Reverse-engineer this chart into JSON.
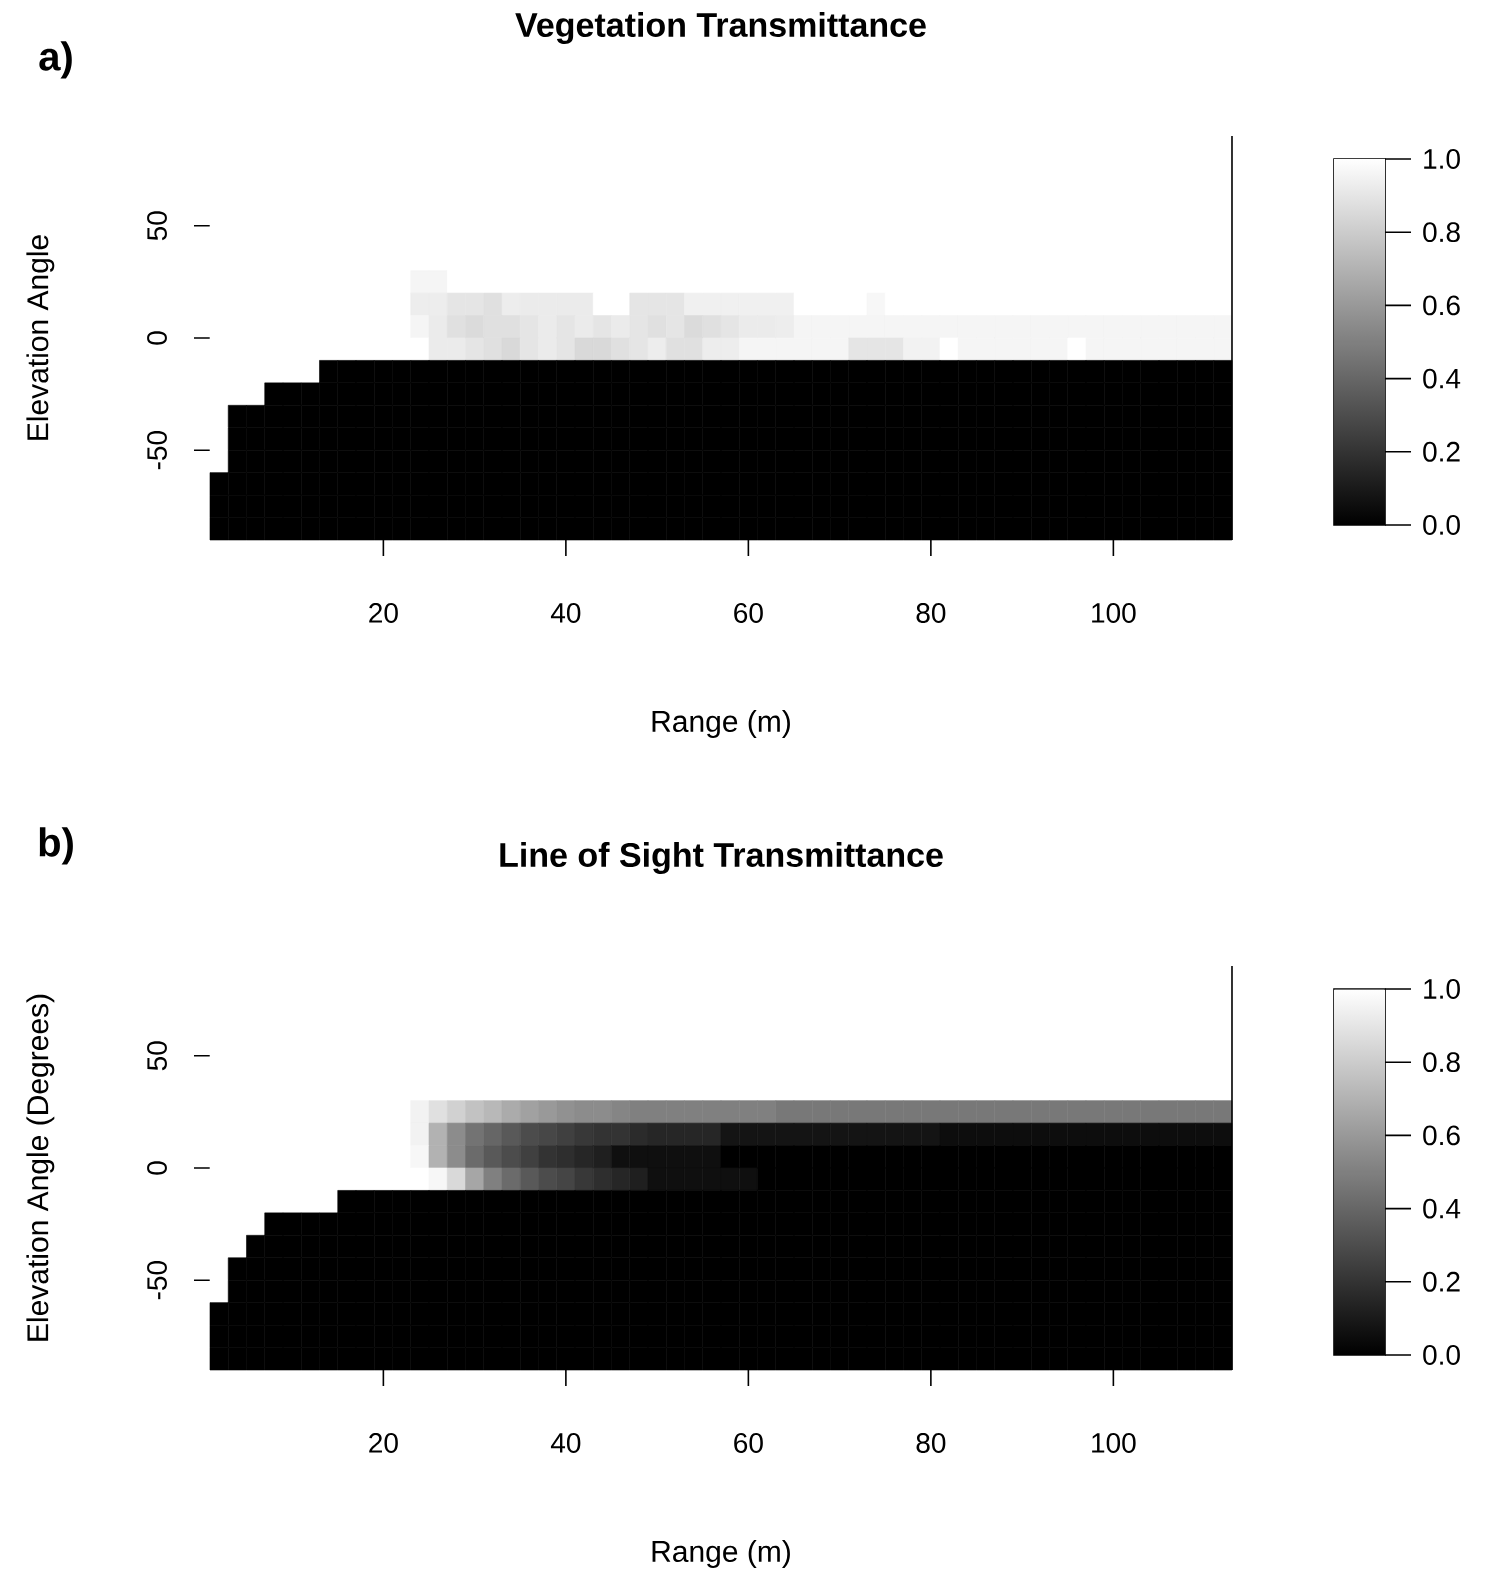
{
  "chart_data": [
    {
      "type": "heatmap",
      "title": "Vegetation Transmittance",
      "xlabel": "Range (m)",
      "ylabel": "Elevation Angle",
      "annotations": [
        "a)"
      ],
      "categories": [
        null,
        null,
        null,
        null,
        null,
        null,
        null,
        null,
        null,
        "20",
        null,
        null,
        null,
        null,
        null,
        null,
        null,
        null,
        null,
        "40",
        null,
        null,
        null,
        null,
        null,
        null,
        null,
        null,
        null,
        "60",
        null,
        null,
        null,
        null,
        null,
        null,
        null,
        null,
        null,
        "80",
        null,
        null,
        null,
        null,
        null,
        null,
        null,
        null,
        null,
        "100",
        null,
        null,
        null,
        null,
        null,
        null
      ],
      "ylim": [
        -90,
        90
      ],
      "yticks": [
        -50,
        0,
        50
      ],
      "clim": [
        0,
        1
      ],
      "cticks": [
        {
          "value": 0,
          "label": "0.0"
        },
        {
          "value": 0.2,
          "label": "0.2"
        },
        {
          "value": 0.4,
          "label": "0.4"
        },
        {
          "value": 0.6,
          "label": "0.6"
        },
        {
          "value": 0.8,
          "label": "0.8"
        },
        {
          "value": 1,
          "label": "1.0"
        }
      ],
      "cells": [
        [
          1,
          1,
          1,
          1,
          1,
          1,
          1,
          1,
          1,
          1,
          1,
          1,
          1,
          1,
          1,
          1,
          1,
          1,
          1,
          1,
          1,
          1,
          1,
          1,
          1,
          1,
          1,
          1,
          1,
          1,
          1,
          1,
          1,
          1,
          1,
          1,
          1,
          1,
          1,
          1,
          1,
          1,
          1,
          1,
          1,
          1,
          1,
          1,
          1,
          1,
          1,
          1,
          1,
          1,
          1,
          1
        ],
        [
          1,
          1,
          1,
          1,
          1,
          1,
          1,
          1,
          1,
          1,
          1,
          1,
          1,
          1,
          1,
          1,
          1,
          1,
          1,
          1,
          1,
          1,
          1,
          1,
          1,
          1,
          1,
          1,
          1,
          1,
          1,
          1,
          1,
          1,
          1,
          1,
          1,
          1,
          1,
          1,
          1,
          1,
          1,
          1,
          1,
          1,
          1,
          1,
          1,
          1,
          1,
          1,
          1,
          1,
          1,
          1
        ],
        [
          1,
          1,
          1,
          1,
          1,
          1,
          1,
          1,
          1,
          1,
          1,
          1,
          1,
          1,
          1,
          1,
          1,
          1,
          1,
          1,
          1,
          1,
          1,
          1,
          1,
          1,
          1,
          1,
          1,
          1,
          1,
          1,
          1,
          1,
          1,
          1,
          1,
          1,
          1,
          1,
          1,
          1,
          1,
          1,
          1,
          1,
          1,
          1,
          1,
          1,
          1,
          1,
          1,
          1,
          1,
          1
        ],
        [
          1,
          1,
          1,
          1,
          1,
          1,
          1,
          1,
          1,
          1,
          1,
          1,
          1,
          1,
          1,
          1,
          1,
          1,
          1,
          1,
          1,
          1,
          1,
          1,
          1,
          1,
          1,
          1,
          1,
          1,
          1,
          1,
          1,
          1,
          1,
          1,
          1,
          1,
          1,
          1,
          1,
          1,
          1,
          1,
          1,
          1,
          1,
          1,
          1,
          1,
          1,
          1,
          1,
          1,
          1,
          1
        ],
        [
          1,
          1,
          1,
          1,
          1,
          1,
          1,
          1,
          1,
          1,
          1,
          1,
          1,
          1,
          1,
          1,
          1,
          1,
          1,
          1,
          1,
          1,
          1,
          1,
          1,
          1,
          1,
          1,
          1,
          1,
          1,
          1,
          1,
          1,
          1,
          1,
          1,
          1,
          1,
          1,
          1,
          1,
          1,
          1,
          1,
          1,
          1,
          1,
          1,
          1,
          1,
          1,
          1,
          1,
          1,
          1
        ],
        [
          1,
          1,
          1,
          1,
          1,
          1,
          1,
          1,
          1,
          1,
          1,
          1,
          1,
          1,
          1,
          1,
          1,
          1,
          1,
          1,
          1,
          1,
          1,
          1,
          1,
          1,
          1,
          1,
          1,
          1,
          1,
          1,
          1,
          1,
          1,
          1,
          1,
          1,
          1,
          1,
          1,
          1,
          1,
          1,
          1,
          1,
          1,
          1,
          1,
          1,
          1,
          1,
          1,
          1,
          1,
          1
        ],
        [
          1,
          1,
          1,
          1,
          1,
          1,
          1,
          1,
          1,
          1,
          1,
          0.96,
          0.96,
          1,
          1,
          1,
          1,
          1,
          1,
          1,
          1,
          1,
          1,
          1,
          1,
          1,
          1,
          1,
          1,
          1,
          1,
          1,
          1,
          1,
          1,
          1,
          1,
          1,
          1,
          1,
          1,
          1,
          1,
          1,
          1,
          1,
          1,
          1,
          1,
          1,
          1,
          1,
          1,
          1,
          1,
          1
        ],
        [
          1,
          1,
          1,
          1,
          1,
          1,
          1,
          1,
          1,
          1,
          1,
          0.93,
          0.93,
          0.9,
          0.9,
          0.88,
          0.93,
          0.92,
          0.92,
          0.92,
          0.92,
          1,
          1,
          0.9,
          0.9,
          0.9,
          0.94,
          0.94,
          0.94,
          0.94,
          0.94,
          0.94,
          1,
          1,
          1,
          1,
          0.97,
          1,
          1,
          1,
          1,
          1,
          1,
          1,
          1,
          1,
          1,
          1,
          1,
          1,
          1,
          1,
          1,
          1,
          1,
          1
        ],
        [
          1,
          1,
          1,
          1,
          1,
          1,
          1,
          1,
          1,
          1,
          1,
          0.96,
          0.92,
          0.88,
          0.86,
          0.88,
          0.88,
          0.9,
          0.92,
          0.9,
          0.92,
          0.9,
          0.92,
          0.9,
          0.88,
          0.9,
          0.86,
          0.88,
          0.9,
          0.92,
          0.92,
          0.93,
          0.96,
          0.96,
          0.96,
          0.96,
          0.96,
          0.96,
          0.96,
          0.96,
          0.96,
          0.96,
          0.96,
          0.96,
          0.96,
          0.96,
          0.96,
          0.96,
          0.96,
          0.96,
          0.96,
          0.96,
          0.96,
          0.96,
          0.96,
          0.96
        ],
        [
          1,
          1,
          1,
          1,
          1,
          1,
          1,
          1,
          1,
          1,
          1,
          1,
          0.92,
          0.92,
          0.9,
          0.88,
          0.85,
          0.9,
          0.92,
          0.9,
          0.85,
          0.85,
          0.88,
          0.9,
          0.93,
          0.88,
          0.88,
          0.93,
          0.93,
          0.96,
          0.96,
          0.96,
          0.96,
          0.96,
          0.96,
          0.9,
          0.9,
          0.9,
          0.95,
          0.95,
          1,
          0.96,
          0.96,
          0.96,
          0.96,
          0.96,
          0.96,
          1,
          0.96,
          0.96,
          0.96,
          0.96,
          0.96,
          0.96,
          0.96,
          0.96
        ],
        [
          1,
          1,
          1,
          1,
          1,
          1,
          0,
          0,
          0,
          0,
          0,
          0,
          0,
          0,
          0,
          0,
          0,
          0,
          0,
          0,
          0,
          0,
          0,
          0,
          0,
          0,
          0,
          0,
          0,
          0,
          0,
          0,
          0,
          0,
          0,
          0,
          0,
          0,
          0,
          0,
          0,
          0,
          0,
          0,
          0,
          0,
          0,
          0,
          0,
          0,
          0,
          0,
          0,
          0,
          0,
          0
        ],
        [
          1,
          1,
          1,
          0,
          0,
          0,
          0,
          0,
          0,
          0,
          0,
          0,
          0,
          0,
          0,
          0,
          0,
          0,
          0,
          0,
          0,
          0,
          0,
          0,
          0,
          0,
          0,
          0,
          0,
          0,
          0,
          0,
          0,
          0,
          0,
          0,
          0,
          0,
          0,
          0,
          0,
          0,
          0,
          0,
          0,
          0,
          0,
          0,
          0,
          0,
          0,
          0,
          0,
          0,
          0,
          0
        ],
        [
          1,
          0,
          0,
          0,
          0,
          0,
          0,
          0,
          0,
          0,
          0,
          0,
          0,
          0,
          0,
          0,
          0,
          0,
          0,
          0,
          0,
          0,
          0,
          0,
          0,
          0,
          0,
          0,
          0,
          0,
          0,
          0,
          0,
          0,
          0,
          0,
          0,
          0,
          0,
          0,
          0,
          0,
          0,
          0,
          0,
          0,
          0,
          0,
          0,
          0,
          0,
          0,
          0,
          0,
          0,
          0
        ],
        [
          1,
          0,
          0,
          0,
          0,
          0,
          0,
          0,
          0,
          0,
          0,
          0,
          0,
          0,
          0,
          0,
          0,
          0,
          0,
          0,
          0,
          0,
          0,
          0,
          0,
          0,
          0,
          0,
          0,
          0,
          0,
          0,
          0,
          0,
          0,
          0,
          0,
          0,
          0,
          0,
          0,
          0,
          0,
          0,
          0,
          0,
          0,
          0,
          0,
          0,
          0,
          0,
          0,
          0,
          0,
          0
        ],
        [
          1,
          0,
          0,
          0,
          0,
          0,
          0,
          0,
          0,
          0,
          0,
          0,
          0,
          0,
          0,
          0,
          0,
          0,
          0,
          0,
          0,
          0,
          0,
          0,
          0,
          0,
          0,
          0,
          0,
          0,
          0,
          0,
          0,
          0,
          0,
          0,
          0,
          0,
          0,
          0,
          0,
          0,
          0,
          0,
          0,
          0,
          0,
          0,
          0,
          0,
          0,
          0,
          0,
          0,
          0,
          0
        ],
        [
          0,
          0,
          0,
          0,
          0,
          0,
          0,
          0,
          0,
          0,
          0,
          0,
          0,
          0,
          0,
          0,
          0,
          0,
          0,
          0,
          0,
          0,
          0,
          0,
          0,
          0,
          0,
          0,
          0,
          0,
          0,
          0,
          0,
          0,
          0,
          0,
          0,
          0,
          0,
          0,
          0,
          0,
          0,
          0,
          0,
          0,
          0,
          0,
          0,
          0,
          0,
          0,
          0,
          0,
          0,
          0
        ],
        [
          0,
          0,
          0,
          0,
          0,
          0,
          0,
          0,
          0,
          0,
          0,
          0,
          0,
          0,
          0,
          0,
          0,
          0,
          0,
          0,
          0,
          0,
          0,
          0,
          0,
          0,
          0,
          0,
          0,
          0,
          0,
          0,
          0,
          0,
          0,
          0,
          0,
          0,
          0,
          0,
          0,
          0,
          0,
          0,
          0,
          0,
          0,
          0,
          0,
          0,
          0,
          0,
          0,
          0,
          0,
          0
        ],
        [
          0,
          0,
          0,
          0,
          0,
          0,
          0,
          0,
          0,
          0,
          0,
          0,
          0,
          0,
          0,
          0,
          0,
          0,
          0,
          0,
          0,
          0,
          0,
          0,
          0,
          0,
          0,
          0,
          0,
          0,
          0,
          0,
          0,
          0,
          0,
          0,
          0,
          0,
          0,
          0,
          0,
          0,
          0,
          0,
          0,
          0,
          0,
          0,
          0,
          0,
          0,
          0,
          0,
          0,
          0,
          0
        ]
      ]
    },
    {
      "type": "heatmap",
      "title": "Line of Sight Transmittance",
      "xlabel": "Range (m)",
      "ylabel": "Elevation Angle (Degrees)",
      "annotations": [
        "b)"
      ],
      "categories": [
        null,
        null,
        null,
        null,
        null,
        null,
        null,
        null,
        null,
        "20",
        null,
        null,
        null,
        null,
        null,
        null,
        null,
        null,
        null,
        "40",
        null,
        null,
        null,
        null,
        null,
        null,
        null,
        null,
        null,
        "60",
        null,
        null,
        null,
        null,
        null,
        null,
        null,
        null,
        null,
        "80",
        null,
        null,
        null,
        null,
        null,
        null,
        null,
        null,
        null,
        "100",
        null,
        null,
        null,
        null,
        null,
        null
      ],
      "ylim": [
        -90,
        90
      ],
      "yticks": [
        -50,
        0,
        50
      ],
      "clim": [
        0,
        1
      ],
      "cticks": [
        {
          "value": 0,
          "label": "0.0"
        },
        {
          "value": 0.2,
          "label": "0.2"
        },
        {
          "value": 0.4,
          "label": "0.4"
        },
        {
          "value": 0.6,
          "label": "0.6"
        },
        {
          "value": 0.8,
          "label": "0.8"
        },
        {
          "value": 1,
          "label": "1.0"
        }
      ],
      "cells": [
        [
          1,
          1,
          1,
          1,
          1,
          1,
          1,
          1,
          1,
          1,
          1,
          1,
          1,
          1,
          1,
          1,
          1,
          1,
          1,
          1,
          1,
          1,
          1,
          1,
          1,
          1,
          1,
          1,
          1,
          1,
          1,
          1,
          1,
          1,
          1,
          1,
          1,
          1,
          1,
          1,
          1,
          1,
          1,
          1,
          1,
          1,
          1,
          1,
          1,
          1,
          1,
          1,
          1,
          1,
          1,
          1
        ],
        [
          1,
          1,
          1,
          1,
          1,
          1,
          1,
          1,
          1,
          1,
          1,
          1,
          1,
          1,
          1,
          1,
          1,
          1,
          1,
          1,
          1,
          1,
          1,
          1,
          1,
          1,
          1,
          1,
          1,
          1,
          1,
          1,
          1,
          1,
          1,
          1,
          1,
          1,
          1,
          1,
          1,
          1,
          1,
          1,
          1,
          1,
          1,
          1,
          1,
          1,
          1,
          1,
          1,
          1,
          1,
          1
        ],
        [
          1,
          1,
          1,
          1,
          1,
          1,
          1,
          1,
          1,
          1,
          1,
          1,
          1,
          1,
          1,
          1,
          1,
          1,
          1,
          1,
          1,
          1,
          1,
          1,
          1,
          1,
          1,
          1,
          1,
          1,
          1,
          1,
          1,
          1,
          1,
          1,
          1,
          1,
          1,
          1,
          1,
          1,
          1,
          1,
          1,
          1,
          1,
          1,
          1,
          1,
          1,
          1,
          1,
          1,
          1,
          1
        ],
        [
          1,
          1,
          1,
          1,
          1,
          1,
          1,
          1,
          1,
          1,
          1,
          1,
          1,
          1,
          1,
          1,
          1,
          1,
          1,
          1,
          1,
          1,
          1,
          1,
          1,
          1,
          1,
          1,
          1,
          1,
          1,
          1,
          1,
          1,
          1,
          1,
          1,
          1,
          1,
          1,
          1,
          1,
          1,
          1,
          1,
          1,
          1,
          1,
          1,
          1,
          1,
          1,
          1,
          1,
          1,
          1
        ],
        [
          1,
          1,
          1,
          1,
          1,
          1,
          1,
          1,
          1,
          1,
          1,
          1,
          1,
          1,
          1,
          1,
          1,
          1,
          1,
          1,
          1,
          1,
          1,
          1,
          1,
          1,
          1,
          1,
          1,
          1,
          1,
          1,
          1,
          1,
          1,
          1,
          1,
          1,
          1,
          1,
          1,
          1,
          1,
          1,
          1,
          1,
          1,
          1,
          1,
          1,
          1,
          1,
          1,
          1,
          1,
          1
        ],
        [
          1,
          1,
          1,
          1,
          1,
          1,
          1,
          1,
          1,
          1,
          1,
          1,
          1,
          1,
          1,
          1,
          1,
          1,
          1,
          1,
          1,
          1,
          1,
          1,
          1,
          1,
          1,
          1,
          1,
          1,
          1,
          1,
          1,
          1,
          1,
          1,
          1,
          1,
          1,
          1,
          1,
          1,
          1,
          1,
          1,
          1,
          1,
          1,
          1,
          1,
          1,
          1,
          1,
          1,
          1,
          1
        ],
        [
          1,
          1,
          1,
          1,
          1,
          1,
          1,
          1,
          1,
          1,
          1,
          0.95,
          0.88,
          0.82,
          0.76,
          0.72,
          0.67,
          0.63,
          0.6,
          0.57,
          0.55,
          0.55,
          0.52,
          0.5,
          0.5,
          0.5,
          0.5,
          0.5,
          0.5,
          0.5,
          0.5,
          0.47,
          0.47,
          0.47,
          0.47,
          0.47,
          0.47,
          0.47,
          0.47,
          0.47,
          0.47,
          0.47,
          0.47,
          0.47,
          0.47,
          0.47,
          0.47,
          0.47,
          0.47,
          0.47,
          0.47,
          0.47,
          0.47,
          0.47,
          0.47,
          0.47
        ],
        [
          1,
          1,
          1,
          1,
          1,
          1,
          1,
          1,
          1,
          1,
          1,
          0.95,
          0.7,
          0.55,
          0.45,
          0.4,
          0.35,
          0.3,
          0.28,
          0.25,
          0.22,
          0.2,
          0.2,
          0.17,
          0.15,
          0.15,
          0.15,
          0.15,
          0.08,
          0.08,
          0.08,
          0.08,
          0.08,
          0.08,
          0.08,
          0.08,
          0.08,
          0.08,
          0.08,
          0.08,
          0.05,
          0.05,
          0.05,
          0.05,
          0.05,
          0.05,
          0.05,
          0.05,
          0.05,
          0.05,
          0.05,
          0.05,
          0.05,
          0.05,
          0.05,
          0.05
        ],
        [
          1,
          1,
          1,
          1,
          1,
          1,
          1,
          1,
          1,
          1,
          1,
          0.97,
          0.7,
          0.55,
          0.42,
          0.35,
          0.3,
          0.25,
          0.2,
          0.18,
          0.15,
          0.12,
          0.06,
          0.06,
          0.06,
          0.06,
          0.06,
          0.06,
          0,
          0,
          0,
          0,
          0,
          0,
          0,
          0,
          0,
          0,
          0,
          0,
          0,
          0,
          0,
          0,
          0,
          0,
          0,
          0,
          0,
          0,
          0,
          0,
          0,
          0,
          0,
          0
        ],
        [
          1,
          1,
          1,
          1,
          1,
          1,
          1,
          1,
          1,
          1,
          1,
          1,
          0.97,
          0.85,
          0.65,
          0.5,
          0.42,
          0.35,
          0.3,
          0.27,
          0.22,
          0.18,
          0.15,
          0.12,
          0.06,
          0.06,
          0.06,
          0.06,
          0.06,
          0.06,
          0,
          0,
          0,
          0,
          0,
          0,
          0,
          0,
          0,
          0,
          0,
          0,
          0,
          0,
          0,
          0,
          0,
          0,
          0,
          0,
          0,
          0,
          0,
          0,
          0,
          0
        ],
        [
          1,
          1,
          1,
          1,
          1,
          1,
          1,
          0,
          0,
          0,
          0,
          0,
          0,
          0,
          0,
          0,
          0,
          0,
          0,
          0,
          0,
          0,
          0,
          0,
          0,
          0,
          0,
          0,
          0,
          0,
          0,
          0,
          0,
          0,
          0,
          0,
          0,
          0,
          0,
          0,
          0,
          0,
          0,
          0,
          0,
          0,
          0,
          0,
          0,
          0,
          0,
          0,
          0,
          0,
          0,
          0
        ],
        [
          1,
          1,
          1,
          0,
          0,
          0,
          0,
          0,
          0,
          0,
          0,
          0,
          0,
          0,
          0,
          0,
          0,
          0,
          0,
          0,
          0,
          0,
          0,
          0,
          0,
          0,
          0,
          0,
          0,
          0,
          0,
          0,
          0,
          0,
          0,
          0,
          0,
          0,
          0,
          0,
          0,
          0,
          0,
          0,
          0,
          0,
          0,
          0,
          0,
          0,
          0,
          0,
          0,
          0,
          0,
          0
        ],
        [
          1,
          1,
          0,
          0,
          0,
          0,
          0,
          0,
          0,
          0,
          0,
          0,
          0,
          0,
          0,
          0,
          0,
          0,
          0,
          0,
          0,
          0,
          0,
          0,
          0,
          0,
          0,
          0,
          0,
          0,
          0,
          0,
          0,
          0,
          0,
          0,
          0,
          0,
          0,
          0,
          0,
          0,
          0,
          0,
          0,
          0,
          0,
          0,
          0,
          0,
          0,
          0,
          0,
          0,
          0,
          0
        ],
        [
          1,
          0,
          0,
          0,
          0,
          0,
          0,
          0,
          0,
          0,
          0,
          0,
          0,
          0,
          0,
          0,
          0,
          0,
          0,
          0,
          0,
          0,
          0,
          0,
          0,
          0,
          0,
          0,
          0,
          0,
          0,
          0,
          0,
          0,
          0,
          0,
          0,
          0,
          0,
          0,
          0,
          0,
          0,
          0,
          0,
          0,
          0,
          0,
          0,
          0,
          0,
          0,
          0,
          0,
          0,
          0
        ],
        [
          1,
          0,
          0,
          0,
          0,
          0,
          0,
          0,
          0,
          0,
          0,
          0,
          0,
          0,
          0,
          0,
          0,
          0,
          0,
          0,
          0,
          0,
          0,
          0,
          0,
          0,
          0,
          0,
          0,
          0,
          0,
          0,
          0,
          0,
          0,
          0,
          0,
          0,
          0,
          0,
          0,
          0,
          0,
          0,
          0,
          0,
          0,
          0,
          0,
          0,
          0,
          0,
          0,
          0,
          0,
          0
        ],
        [
          0,
          0,
          0,
          0,
          0,
          0,
          0,
          0,
          0,
          0,
          0,
          0,
          0,
          0,
          0,
          0,
          0,
          0,
          0,
          0,
          0,
          0,
          0,
          0,
          0,
          0,
          0,
          0,
          0,
          0,
          0,
          0,
          0,
          0,
          0,
          0,
          0,
          0,
          0,
          0,
          0,
          0,
          0,
          0,
          0,
          0,
          0,
          0,
          0,
          0,
          0,
          0,
          0,
          0,
          0,
          0
        ],
        [
          0,
          0,
          0,
          0,
          0,
          0,
          0,
          0,
          0,
          0,
          0,
          0,
          0,
          0,
          0,
          0,
          0,
          0,
          0,
          0,
          0,
          0,
          0,
          0,
          0,
          0,
          0,
          0,
          0,
          0,
          0,
          0,
          0,
          0,
          0,
          0,
          0,
          0,
          0,
          0,
          0,
          0,
          0,
          0,
          0,
          0,
          0,
          0,
          0,
          0,
          0,
          0,
          0,
          0,
          0,
          0
        ],
        [
          0,
          0,
          0,
          0,
          0,
          0,
          0,
          0,
          0,
          0,
          0,
          0,
          0,
          0,
          0,
          0,
          0,
          0,
          0,
          0,
          0,
          0,
          0,
          0,
          0,
          0,
          0,
          0,
          0,
          0,
          0,
          0,
          0,
          0,
          0,
          0,
          0,
          0,
          0,
          0,
          0,
          0,
          0,
          0,
          0,
          0,
          0,
          0,
          0,
          0,
          0,
          0,
          0,
          0,
          0,
          0
        ]
      ]
    }
  ]
}
